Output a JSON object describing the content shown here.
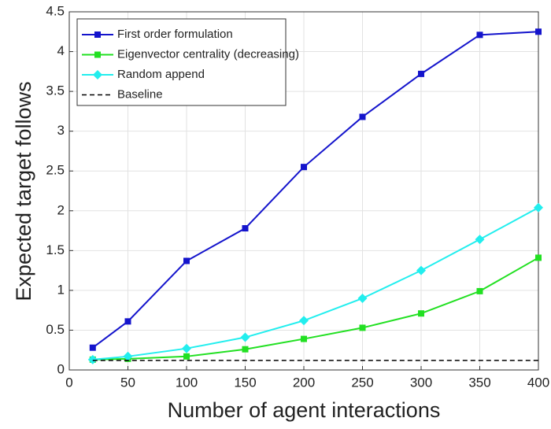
{
  "chart_data": {
    "type": "line",
    "xlabel": "Number of agent interactions",
    "ylabel": "Expected target follows",
    "x": [
      20,
      50,
      100,
      150,
      200,
      250,
      300,
      350,
      400
    ],
    "series": [
      {
        "name": "First order formulation",
        "color": "#1414cc",
        "marker": "square",
        "line_style": "solid",
        "values": [
          0.28,
          0.61,
          1.37,
          1.78,
          2.55,
          3.18,
          3.72,
          4.21,
          4.25
        ]
      },
      {
        "name": "Eigenvector centrality (decreasing)",
        "color": "#22e022",
        "marker": "square",
        "line_style": "solid",
        "values": [
          0.13,
          0.14,
          0.17,
          0.26,
          0.39,
          0.53,
          0.71,
          0.99,
          1.41
        ]
      },
      {
        "name": "Random append",
        "color": "#22eeee",
        "marker": "diamond",
        "line_style": "solid",
        "values": [
          0.13,
          0.17,
          0.27,
          0.41,
          0.62,
          0.9,
          1.25,
          1.64,
          2.04
        ]
      },
      {
        "name": "Baseline",
        "color": "#000000",
        "line_style": "dashed",
        "values": [
          0.12,
          0.12,
          0.12,
          0.12,
          0.12,
          0.12,
          0.12,
          0.12,
          0.12
        ]
      }
    ],
    "xlim": [
      0,
      400
    ],
    "xticks": [
      0,
      50,
      100,
      150,
      200,
      250,
      300,
      350,
      400
    ],
    "ylim": [
      0,
      4.5
    ],
    "yticks": [
      0,
      0.5,
      1,
      1.5,
      2,
      2.5,
      3,
      3.5,
      4,
      4.5
    ],
    "grid": true,
    "legend": "upper left"
  }
}
